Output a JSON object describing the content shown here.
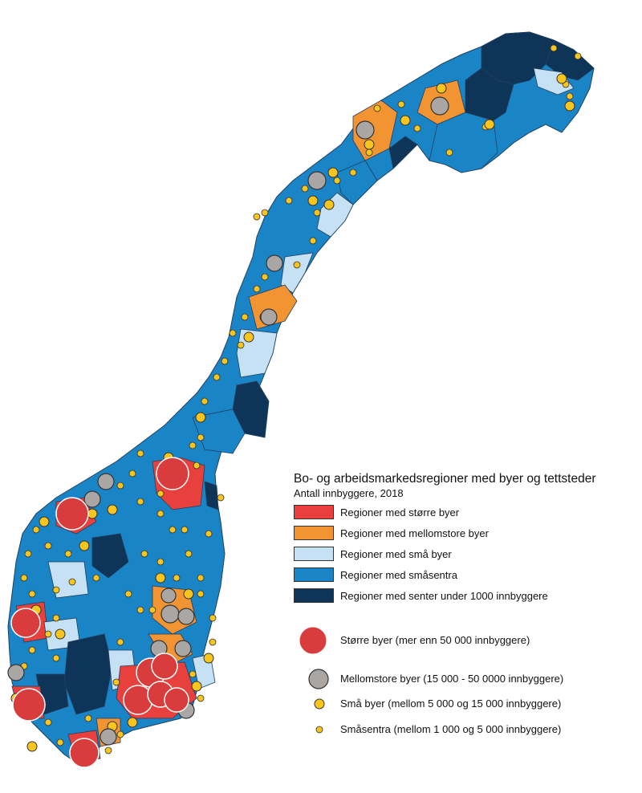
{
  "legend": {
    "title": "Bo- og arbeidsmarkedsregioner med byer og tettsteder",
    "subtitle": "Antall innbyggere, 2018",
    "regions": [
      {
        "label": "Regioner med større byer",
        "color": "#e8403c"
      },
      {
        "label": "Regioner med mellomstore byer",
        "color": "#f39432"
      },
      {
        "label": "Regioner med små byer",
        "color": "#c6e0f4"
      },
      {
        "label": "Regioner med småsentra",
        "color": "#1a85c6"
      },
      {
        "label": "Regioner med senter under 1000 innbyggere",
        "color": "#0e3558"
      }
    ],
    "symbols": [
      {
        "label": "Større byer (mer enn 50 000 innbyggere)",
        "color": "#d93c3c"
      },
      {
        "label": "Mellomstore byer (15 000 - 50 0000 innbyggere)",
        "color": "#a9a6a4"
      },
      {
        "label": "Små byer (mellom 5 000 og 15 000 innbyggere)",
        "color": "#f7c51e"
      },
      {
        "label": "Småsentra (mellom 1 000 og 5 000 innbyggere)",
        "color": "#f7c51e"
      }
    ]
  }
}
